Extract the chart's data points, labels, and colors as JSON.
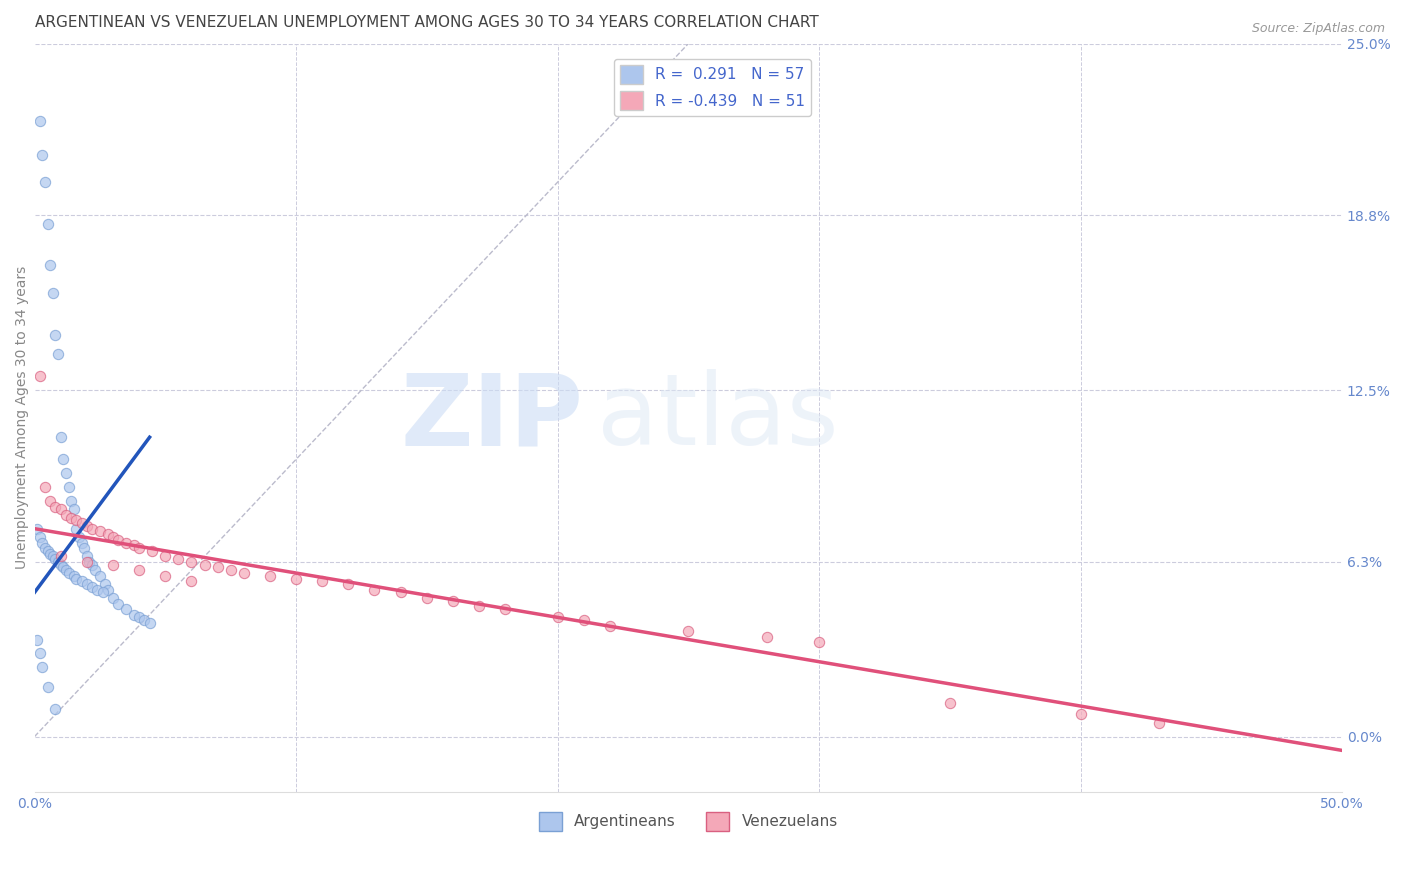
{
  "title": "ARGENTINEAN VS VENEZUELAN UNEMPLOYMENT AMONG AGES 30 TO 34 YEARS CORRELATION CHART",
  "source": "Source: ZipAtlas.com",
  "ylabel": "Unemployment Among Ages 30 to 34 years",
  "xlim": [
    0.0,
    0.5
  ],
  "ylim": [
    -0.02,
    0.25
  ],
  "yticks_right": [
    0.0,
    0.063,
    0.125,
    0.188,
    0.25
  ],
  "ytick_right_labels": [
    "0.0%",
    "6.3%",
    "12.5%",
    "18.8%",
    "25.0%"
  ],
  "legend_entries": [
    {
      "label": "R =  0.291   N = 57",
      "color": "#adc6ed"
    },
    {
      "label": "R = -0.439   N = 51",
      "color": "#f4a8b8"
    }
  ],
  "watermark_zip": "ZIP",
  "watermark_atlas": "atlas",
  "argentineans": {
    "x": [
      0.002,
      0.003,
      0.004,
      0.005,
      0.006,
      0.007,
      0.008,
      0.009,
      0.01,
      0.011,
      0.012,
      0.013,
      0.014,
      0.015,
      0.016,
      0.017,
      0.018,
      0.019,
      0.02,
      0.021,
      0.022,
      0.023,
      0.025,
      0.027,
      0.028,
      0.03,
      0.032,
      0.035,
      0.038,
      0.04,
      0.042,
      0.044,
      0.001,
      0.002,
      0.003,
      0.004,
      0.005,
      0.006,
      0.007,
      0.008,
      0.009,
      0.01,
      0.011,
      0.012,
      0.013,
      0.015,
      0.016,
      0.018,
      0.02,
      0.022,
      0.024,
      0.026,
      0.001,
      0.002,
      0.003,
      0.005,
      0.008
    ],
    "y": [
      0.222,
      0.21,
      0.2,
      0.185,
      0.17,
      0.16,
      0.145,
      0.138,
      0.108,
      0.1,
      0.095,
      0.09,
      0.085,
      0.082,
      0.075,
      0.072,
      0.07,
      0.068,
      0.065,
      0.063,
      0.062,
      0.06,
      0.058,
      0.055,
      0.053,
      0.05,
      0.048,
      0.046,
      0.044,
      0.043,
      0.042,
      0.041,
      0.075,
      0.072,
      0.07,
      0.068,
      0.067,
      0.066,
      0.065,
      0.064,
      0.063,
      0.062,
      0.061,
      0.06,
      0.059,
      0.058,
      0.057,
      0.056,
      0.055,
      0.054,
      0.053,
      0.052,
      0.035,
      0.03,
      0.025,
      0.018,
      0.01
    ],
    "color": "#adc6ed",
    "edge_color": "#7aa0d4",
    "trend_color": "#2255bb",
    "trend_x": [
      0.0,
      0.044
    ],
    "trend_y": [
      0.052,
      0.108
    ]
  },
  "venezuelans": {
    "x": [
      0.002,
      0.004,
      0.006,
      0.008,
      0.01,
      0.012,
      0.014,
      0.016,
      0.018,
      0.02,
      0.022,
      0.025,
      0.028,
      0.03,
      0.032,
      0.035,
      0.038,
      0.04,
      0.045,
      0.05,
      0.055,
      0.06,
      0.065,
      0.07,
      0.075,
      0.08,
      0.09,
      0.1,
      0.11,
      0.12,
      0.13,
      0.14,
      0.15,
      0.16,
      0.17,
      0.18,
      0.2,
      0.21,
      0.22,
      0.25,
      0.28,
      0.3,
      0.01,
      0.02,
      0.03,
      0.04,
      0.05,
      0.06,
      0.35,
      0.4,
      0.43
    ],
    "y": [
      0.13,
      0.09,
      0.085,
      0.083,
      0.082,
      0.08,
      0.079,
      0.078,
      0.077,
      0.076,
      0.075,
      0.074,
      0.073,
      0.072,
      0.071,
      0.07,
      0.069,
      0.068,
      0.067,
      0.065,
      0.064,
      0.063,
      0.062,
      0.061,
      0.06,
      0.059,
      0.058,
      0.057,
      0.056,
      0.055,
      0.053,
      0.052,
      0.05,
      0.049,
      0.047,
      0.046,
      0.043,
      0.042,
      0.04,
      0.038,
      0.036,
      0.034,
      0.065,
      0.063,
      0.062,
      0.06,
      0.058,
      0.056,
      0.012,
      0.008,
      0.005
    ],
    "color": "#f4a8b8",
    "edge_color": "#d96080",
    "trend_color": "#e0507a",
    "trend_x": [
      0.0,
      0.5
    ],
    "trend_y": [
      0.075,
      -0.005
    ]
  },
  "diag_line_x": [
    0.0,
    0.25
  ],
  "diag_line_y": [
    0.0,
    0.25
  ],
  "title_fontsize": 11,
  "axis_label_fontsize": 10,
  "tick_fontsize": 10,
  "legend_fontsize": 11,
  "source_fontsize": 9,
  "title_color": "#444444",
  "axis_label_color": "#888888",
  "tick_color": "#6688cc",
  "grid_color": "#ccccdd",
  "background_color": "#ffffff"
}
